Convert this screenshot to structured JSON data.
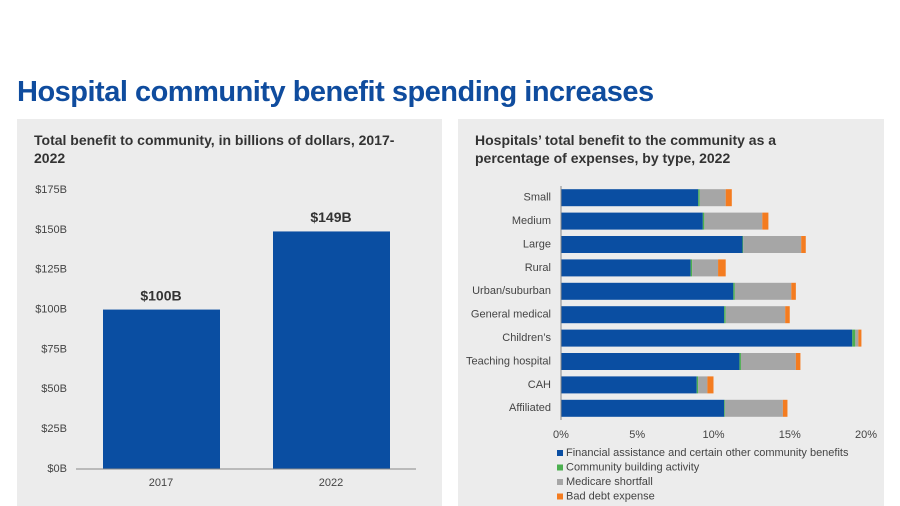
{
  "title": "Hospital community benefit spending increases",
  "chart_data": [
    {
      "type": "bar",
      "title": "Total benefit to community, in billions of dollars, 2017-2022",
      "categories": [
        "2017",
        "2022"
      ],
      "values": [
        100,
        149
      ],
      "value_labels": [
        "$100B",
        "$149B"
      ],
      "color": "#0a4ea2",
      "ylim": [
        0,
        175
      ],
      "yticks": [
        {
          "value": 0,
          "label": "$0B"
        },
        {
          "value": 25,
          "label": "$25B"
        },
        {
          "value": 50,
          "label": "$50B"
        },
        {
          "value": 75,
          "label": "$75B"
        },
        {
          "value": 100,
          "label": "$100B"
        },
        {
          "value": 125,
          "label": "$125B"
        },
        {
          "value": 150,
          "label": "$150B"
        },
        {
          "value": 175,
          "label": "$175B"
        }
      ]
    },
    {
      "type": "stacked-barh",
      "title": "Hospitals’ total benefit to the community as a percentage of expenses, by type, 2022",
      "categories": [
        "Small",
        "Medium",
        "Large",
        "Rural",
        "Urban/suburban",
        "General medical",
        "Children’s",
        "Teaching hospital",
        "CAH",
        "Affiliated"
      ],
      "series": [
        {
          "name": "Financial assistance and certain other community benefits",
          "color": "#0a4ea2",
          "values": [
            9.0,
            9.3,
            11.9,
            8.5,
            11.3,
            10.7,
            19.1,
            11.7,
            8.9,
            10.7
          ]
        },
        {
          "name": "Community building activity",
          "color": "#4caf50",
          "values": [
            0.1,
            0.1,
            0.05,
            0.1,
            0.1,
            0.1,
            0.2,
            0.1,
            0.1,
            0.05
          ]
        },
        {
          "name": "Medicare shortfall",
          "color": "#a6a6a6",
          "values": [
            1.7,
            3.8,
            3.8,
            1.7,
            3.7,
            3.9,
            0.2,
            3.6,
            0.6,
            3.8
          ]
        },
        {
          "name": "Bad debt expense",
          "color": "#f47c20",
          "values": [
            0.4,
            0.4,
            0.3,
            0.5,
            0.3,
            0.3,
            0.2,
            0.3,
            0.4,
            0.3
          ]
        }
      ],
      "xlim": [
        0,
        20
      ],
      "xticks": [
        {
          "value": 0,
          "label": "0%"
        },
        {
          "value": 5,
          "label": "5%"
        },
        {
          "value": 10,
          "label": "10%"
        },
        {
          "value": 15,
          "label": "15%"
        },
        {
          "value": 20,
          "label": "20%"
        }
      ]
    }
  ]
}
